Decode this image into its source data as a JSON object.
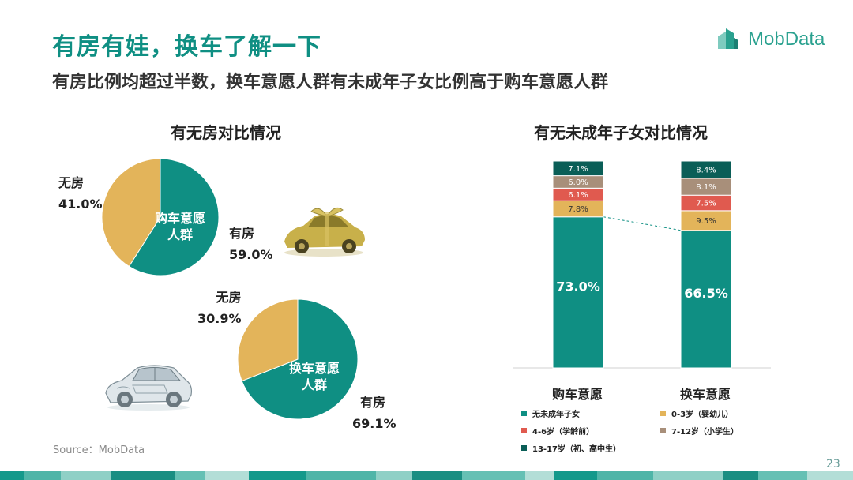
{
  "header": {
    "title": "有房有娃，换车了解一下",
    "subtitle": "有房比例均超过半数，换车意愿人群有未成年子女比例高于购车意愿人群",
    "logo_text": "MobData"
  },
  "colors": {
    "teal": "#0f8f83",
    "gold": "#e3b45a",
    "red": "#e05a4f",
    "brown": "#a88f7a",
    "dark_teal": "#0a5e57"
  },
  "left_section": {
    "title": "有无房对比情况",
    "pie1": {
      "center_label_line1": "购车意愿",
      "center_label_line2": "人群",
      "no_house_label": "无房",
      "no_house_value": "41.0%",
      "house_label": "有房",
      "house_value": "59.0%",
      "no_house_fraction": 0.41,
      "house_fraction": 0.59
    },
    "pie2": {
      "center_label_line1": "换车意愿",
      "center_label_line2": "人群",
      "no_house_label": "无房",
      "no_house_value": "30.9%",
      "house_label": "有房",
      "house_value": "69.1%",
      "no_house_fraction": 0.309,
      "house_fraction": 0.691
    }
  },
  "right_section": {
    "title": "有无未成年子女对比情况"
  },
  "chart_data": {
    "type": "bar",
    "stacked": true,
    "categories": [
      "购车意愿",
      "换车意愿"
    ],
    "ylim": [
      0,
      100
    ],
    "series": [
      {
        "name": "无未成年子女",
        "color": "#0f8f83",
        "values": [
          73.0,
          66.5
        ],
        "labels": [
          "73.0%",
          "66.5%"
        ]
      },
      {
        "name": "0-3岁（婴幼儿）",
        "color": "#e3b45a",
        "values": [
          7.8,
          9.5
        ],
        "labels": [
          "7.8%",
          "9.5%"
        ]
      },
      {
        "name": "4-6岁（学龄前）",
        "color": "#e05a4f",
        "values": [
          6.1,
          7.5
        ],
        "labels": [
          "6.1%",
          "7.5%"
        ]
      },
      {
        "name": "7-12岁（小学生）",
        "color": "#a88f7a",
        "values": [
          6.0,
          8.1
        ],
        "labels": [
          "6.0%",
          "8.1%"
        ]
      },
      {
        "name": "13-17岁（初、高中生）",
        "color": "#0a5e57",
        "values": [
          7.1,
          8.4
        ],
        "labels": [
          "7.1%",
          "8.4%"
        ]
      }
    ],
    "legend": "bottom"
  },
  "footer": {
    "source": "Source：MobData",
    "page_number": "23"
  }
}
